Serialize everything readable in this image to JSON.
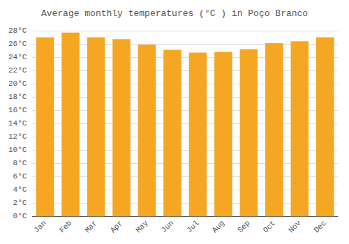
{
  "chart_data": {
    "type": "bar",
    "title": "Average monthly temperatures (°C ) in Poço Branco",
    "categories": [
      "Jan",
      "Feb",
      "Mar",
      "Apr",
      "May",
      "Jun",
      "Jul",
      "Aug",
      "Sep",
      "Oct",
      "Nov",
      "Dec"
    ],
    "values": [
      27.0,
      27.7,
      27.0,
      26.7,
      25.9,
      25.1,
      24.7,
      24.8,
      25.2,
      26.1,
      26.4,
      27.0
    ],
    "color": "#F5A623",
    "ylim": [
      0,
      28
    ],
    "yticks": [
      {
        "value": 0,
        "label": "0°C"
      },
      {
        "value": 2,
        "label": "2°C"
      },
      {
        "value": 4,
        "label": "4°C"
      },
      {
        "value": 6,
        "label": "6°C"
      },
      {
        "value": 8,
        "label": "8°C"
      },
      {
        "value": 10,
        "label": "10°C"
      },
      {
        "value": 12,
        "label": "12°C"
      },
      {
        "value": 14,
        "label": "14°C"
      },
      {
        "value": 16,
        "label": "16°C"
      },
      {
        "value": 18,
        "label": "18°C"
      },
      {
        "value": 20,
        "label": "20°C"
      },
      {
        "value": 22,
        "label": "22°C"
      },
      {
        "value": 24,
        "label": "24°C"
      },
      {
        "value": 26,
        "label": "26°C"
      },
      {
        "value": 28,
        "label": "28°C"
      }
    ],
    "grid": true
  }
}
